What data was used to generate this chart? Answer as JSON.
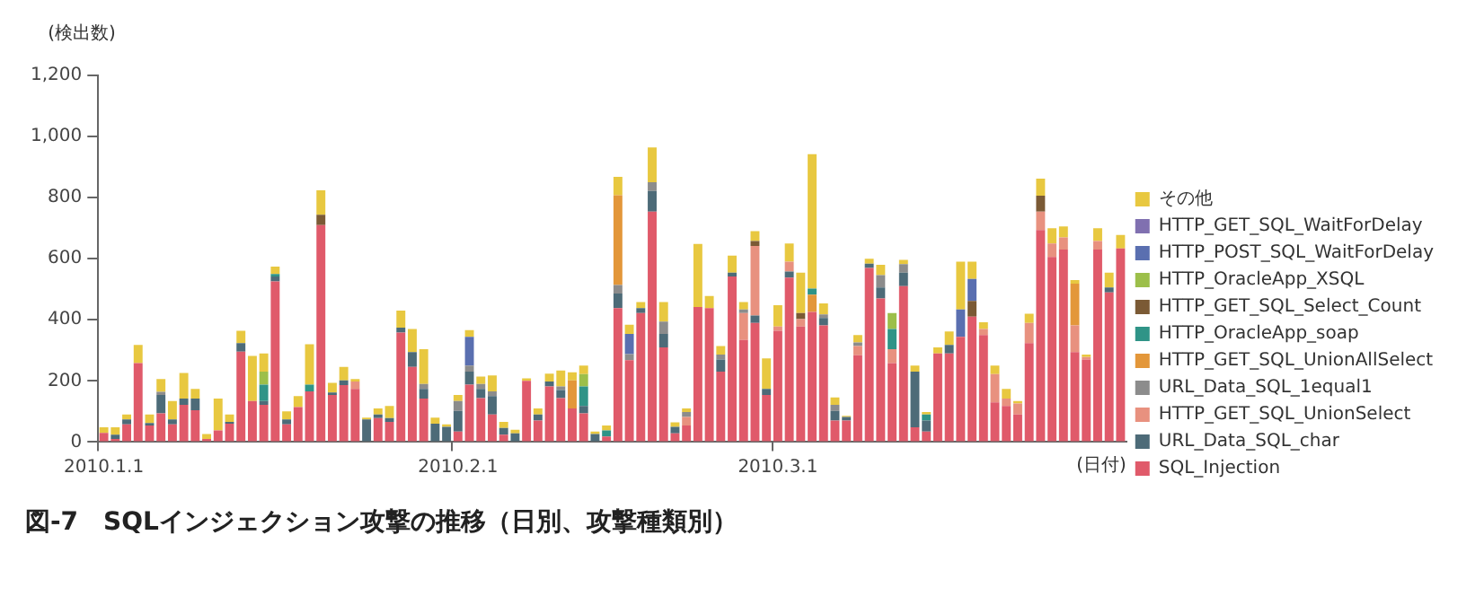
{
  "chart_data": {
    "type": "bar",
    "stacked": true,
    "title": "図-7　SQLインジェクション攻撃の推移（日別、攻撃種類別）",
    "ylabel": "(検出数)",
    "xlabel": "(日付)",
    "categories": [
      "2010.1.1",
      null,
      null,
      null,
      null,
      null,
      null,
      null,
      null,
      null,
      null,
      null,
      null,
      null,
      null,
      null,
      null,
      null,
      null,
      null,
      null,
      null,
      null,
      null,
      null,
      null,
      null,
      null,
      null,
      null,
      null,
      "2010.2.1",
      null,
      null,
      null,
      null,
      null,
      null,
      null,
      null,
      null,
      null,
      null,
      null,
      null,
      null,
      null,
      null,
      null,
      null,
      null,
      null,
      null,
      null,
      null,
      null,
      null,
      null,
      null,
      "2010.3.1",
      null,
      null,
      null,
      null,
      null,
      null,
      null,
      null,
      null,
      null,
      null,
      null,
      null,
      null,
      null,
      null,
      null,
      null,
      null,
      null,
      null,
      null,
      null,
      null,
      null,
      null,
      null,
      null,
      null,
      null
    ],
    "ylim": [
      0,
      1200
    ],
    "yticks": [
      0,
      200,
      400,
      600,
      800,
      {
        "value": 1000,
        "label": "1,000"
      },
      {
        "value": 1200,
        "label": "1,200"
      }
    ],
    "grid": false,
    "legend": "right",
    "series": [
      {
        "name": "SQL_Injection",
        "color": "#e05a6a",
        "values": [
          30,
          10,
          58,
          258,
          54,
          94,
          58,
          122,
          104,
          10,
          38,
          60,
          296,
          134,
          122,
          526,
          58,
          114,
          166,
          710,
          154,
          186,
          174,
          0,
          78,
          66,
          358,
          246,
          142,
          0,
          0,
          34,
          188,
          144,
          90,
          24,
          0,
          200,
          70,
          182,
          144,
          110,
          94,
          0,
          18,
          438,
          268,
          422,
          754,
          310,
          28,
          54,
          442,
          438,
          230,
          542,
          334,
          390,
          154,
          364,
          538,
          378,
          426,
          382,
          70,
          70,
          284,
          570,
          470,
          258,
          510,
          48,
          34,
          290,
          290,
          344,
          410,
          350,
          130,
          118,
          90,
          324,
          694,
          606,
          630,
          294,
          270,
          630,
          490,
          634
        ]
      },
      {
        "name": "URL_Data_SQL_char",
        "color": "#4d6b78",
        "values": [
          0,
          14,
          16,
          0,
          8,
          60,
          16,
          20,
          38,
          0,
          0,
          6,
          28,
          0,
          12,
          16,
          16,
          0,
          0,
          0,
          8,
          16,
          0,
          74,
          12,
          12,
          16,
          48,
          32,
          60,
          50,
          68,
          42,
          30,
          60,
          22,
          28,
          0,
          20,
          16,
          26,
          0,
          24,
          26,
          0,
          48,
          0,
          16,
          68,
          44,
          22,
          0,
          0,
          0,
          40,
          12,
          0,
          24,
          20,
          0,
          20,
          0,
          0,
          24,
          32,
          12,
          0,
          14,
          36,
          0,
          44,
          182,
          36,
          0,
          28,
          0,
          0,
          0,
          0,
          0,
          0,
          0,
          0,
          0,
          0,
          0,
          0,
          0,
          16,
          0
        ]
      },
      {
        "name": "HTTP_GET_SQL_UnionSelect",
        "color": "#e8917f",
        "values": [
          0,
          0,
          0,
          0,
          0,
          0,
          0,
          0,
          0,
          0,
          0,
          0,
          0,
          0,
          0,
          0,
          0,
          0,
          0,
          0,
          0,
          0,
          24,
          0,
          0,
          0,
          0,
          0,
          0,
          0,
          0,
          0,
          0,
          0,
          0,
          0,
          0,
          0,
          0,
          0,
          0,
          0,
          0,
          0,
          0,
          0,
          0,
          0,
          0,
          0,
          0,
          28,
          0,
          0,
          0,
          0,
          88,
          228,
          0,
          14,
          32,
          24,
          0,
          0,
          0,
          0,
          30,
          0,
          0,
          46,
          0,
          0,
          0,
          0,
          0,
          0,
          0,
          20,
          92,
          24,
          36,
          66,
          60,
          44,
          40,
          88,
          8,
          28,
          0,
          0
        ]
      },
      {
        "name": "URL_Data_SQL_1equal1",
        "color": "#8c8c8c",
        "values": [
          0,
          0,
          0,
          0,
          0,
          10,
          0,
          0,
          0,
          0,
          0,
          0,
          0,
          0,
          0,
          0,
          0,
          0,
          0,
          0,
          0,
          0,
          0,
          0,
          0,
          0,
          0,
          0,
          16,
          0,
          0,
          32,
          20,
          16,
          16,
          0,
          0,
          0,
          0,
          0,
          12,
          0,
          0,
          0,
          0,
          28,
          20,
          0,
          28,
          40,
          0,
          16,
          0,
          0,
          16,
          0,
          12,
          0,
          0,
          0,
          0,
          0,
          0,
          12,
          20,
          0,
          12,
          0,
          40,
          0,
          28,
          0,
          0,
          0,
          0,
          0,
          0,
          0,
          0,
          0,
          0,
          0,
          0,
          0,
          0,
          0,
          0,
          0,
          0,
          0
        ]
      },
      {
        "name": "HTTP_GET_SQL_UnionAllSelect",
        "color": "#e3973a",
        "values": [
          0,
          0,
          0,
          0,
          0,
          0,
          0,
          0,
          0,
          0,
          0,
          0,
          0,
          0,
          0,
          0,
          0,
          0,
          0,
          0,
          0,
          0,
          0,
          0,
          0,
          0,
          0,
          0,
          0,
          0,
          0,
          0,
          0,
          0,
          0,
          0,
          0,
          0,
          0,
          0,
          0,
          92,
          0,
          0,
          0,
          294,
          0,
          0,
          0,
          0,
          0,
          0,
          0,
          0,
          0,
          0,
          0,
          0,
          0,
          0,
          0,
          0,
          56,
          0,
          0,
          0,
          0,
          0,
          0,
          0,
          0,
          0,
          0,
          0,
          0,
          0,
          0,
          0,
          0,
          0,
          0,
          0,
          0,
          0,
          0,
          136,
          0,
          0,
          0,
          0
        ]
      },
      {
        "name": "HTTP_OracleApp_soap",
        "color": "#2f9487",
        "values": [
          0,
          0,
          0,
          0,
          0,
          0,
          0,
          0,
          0,
          0,
          0,
          0,
          0,
          0,
          54,
          8,
          0,
          0,
          22,
          0,
          0,
          0,
          0,
          0,
          0,
          0,
          0,
          0,
          0,
          0,
          0,
          0,
          0,
          0,
          0,
          0,
          0,
          0,
          0,
          0,
          0,
          0,
          64,
          0,
          20,
          0,
          0,
          0,
          0,
          0,
          0,
          0,
          0,
          0,
          0,
          0,
          0,
          0,
          0,
          0,
          0,
          0,
          20,
          0,
          0,
          0,
          0,
          0,
          0,
          66,
          0,
          0,
          20,
          0,
          0,
          0,
          0,
          0,
          0,
          0,
          0,
          0,
          0,
          0,
          0,
          0,
          0,
          0,
          0,
          0
        ]
      },
      {
        "name": "HTTP_GET_SQL_Select_Count",
        "color": "#7b5a35",
        "values": [
          0,
          0,
          0,
          0,
          0,
          0,
          0,
          0,
          0,
          0,
          0,
          0,
          0,
          0,
          0,
          0,
          0,
          0,
          0,
          34,
          0,
          0,
          0,
          0,
          0,
          0,
          0,
          0,
          0,
          0,
          0,
          0,
          0,
          0,
          0,
          0,
          0,
          0,
          0,
          0,
          0,
          0,
          0,
          0,
          0,
          0,
          0,
          0,
          0,
          0,
          0,
          0,
          0,
          0,
          0,
          0,
          0,
          16,
          0,
          0,
          0,
          20,
          0,
          0,
          0,
          0,
          0,
          0,
          0,
          0,
          0,
          0,
          0,
          0,
          0,
          0,
          52,
          0,
          0,
          0,
          0,
          0,
          52,
          0,
          0,
          0,
          0,
          0,
          0,
          0
        ]
      },
      {
        "name": "HTTP_OracleApp_XSQL",
        "color": "#9cbf4a",
        "values": [
          0,
          0,
          0,
          0,
          0,
          0,
          0,
          0,
          0,
          0,
          0,
          0,
          0,
          0,
          42,
          0,
          0,
          0,
          0,
          0,
          0,
          0,
          0,
          0,
          0,
          0,
          0,
          0,
          0,
          0,
          0,
          0,
          0,
          0,
          0,
          0,
          0,
          0,
          0,
          0,
          0,
          0,
          40,
          0,
          0,
          0,
          0,
          0,
          0,
          0,
          0,
          0,
          0,
          0,
          0,
          0,
          0,
          0,
          0,
          0,
          0,
          0,
          0,
          0,
          0,
          0,
          0,
          0,
          0,
          52,
          0,
          0,
          0,
          0,
          0,
          0,
          0,
          0,
          0,
          0,
          0,
          0,
          0,
          0,
          0,
          0,
          0,
          0,
          0,
          0
        ]
      },
      {
        "name": "HTTP_POST_SQL_WaitForDelay",
        "color": "#5a6fb0",
        "values": [
          0,
          0,
          0,
          0,
          0,
          0,
          0,
          0,
          0,
          0,
          0,
          0,
          0,
          0,
          0,
          0,
          0,
          0,
          0,
          0,
          0,
          0,
          0,
          0,
          0,
          0,
          0,
          0,
          0,
          0,
          0,
          0,
          94,
          0,
          0,
          0,
          0,
          0,
          0,
          0,
          0,
          0,
          0,
          0,
          0,
          0,
          66,
          0,
          0,
          0,
          0,
          0,
          0,
          0,
          0,
          0,
          0,
          0,
          0,
          0,
          0,
          0,
          0,
          0,
          0,
          0,
          0,
          0,
          0,
          0,
          0,
          0,
          0,
          0,
          0,
          90,
          72,
          0,
          0,
          0,
          0,
          0,
          0,
          0,
          0,
          0,
          0,
          0,
          0,
          0
        ]
      },
      {
        "name": "HTTP_GET_SQL_WaitForDelay",
        "color": "#8070b0",
        "values": [
          0,
          0,
          0,
          0,
          0,
          0,
          0,
          0,
          0,
          0,
          0,
          0,
          0,
          0,
          0,
          0,
          0,
          0,
          0,
          0,
          0,
          0,
          0,
          0,
          0,
          0,
          0,
          0,
          0,
          0,
          0,
          0,
          0,
          0,
          0,
          0,
          0,
          0,
          0,
          0,
          0,
          0,
          0,
          0,
          0,
          0,
          0,
          0,
          0,
          0,
          0,
          0,
          0,
          0,
          0,
          0,
          0,
          0,
          0,
          0,
          0,
          0,
          0,
          0,
          0,
          0,
          0,
          0,
          0,
          0,
          0,
          0,
          0,
          0,
          0,
          0,
          0,
          0,
          0,
          0,
          0,
          0,
          0,
          0,
          0,
          0,
          0,
          0,
          0,
          0
        ]
      },
      {
        "name": "その他",
        "color": "#e8c840",
        "values": [
          18,
          24,
          16,
          60,
          28,
          42,
          60,
          84,
          32,
          16,
          104,
          24,
          40,
          148,
          60,
          24,
          26,
          36,
          132,
          80,
          32,
          44,
          8,
          6,
          20,
          40,
          56,
          76,
          114,
          20,
          8,
          20,
          22,
          24,
          52,
          20,
          12,
          8,
          20,
          26,
          52,
          26,
          28,
          8,
          16,
          60,
          30,
          20,
          114,
          64,
          14,
          12,
          206,
          40,
          28,
          56,
          24,
          32,
          100,
          70,
          60,
          132,
          440,
          36,
          24,
          4,
          24,
          16,
          34,
          0,
          14,
          20,
          8,
          20,
          44,
          156,
          56,
          22,
          28,
          32,
          8,
          30,
          56,
          50,
          36,
          12,
          8,
          42,
          48,
          44
        ]
      }
    ]
  }
}
